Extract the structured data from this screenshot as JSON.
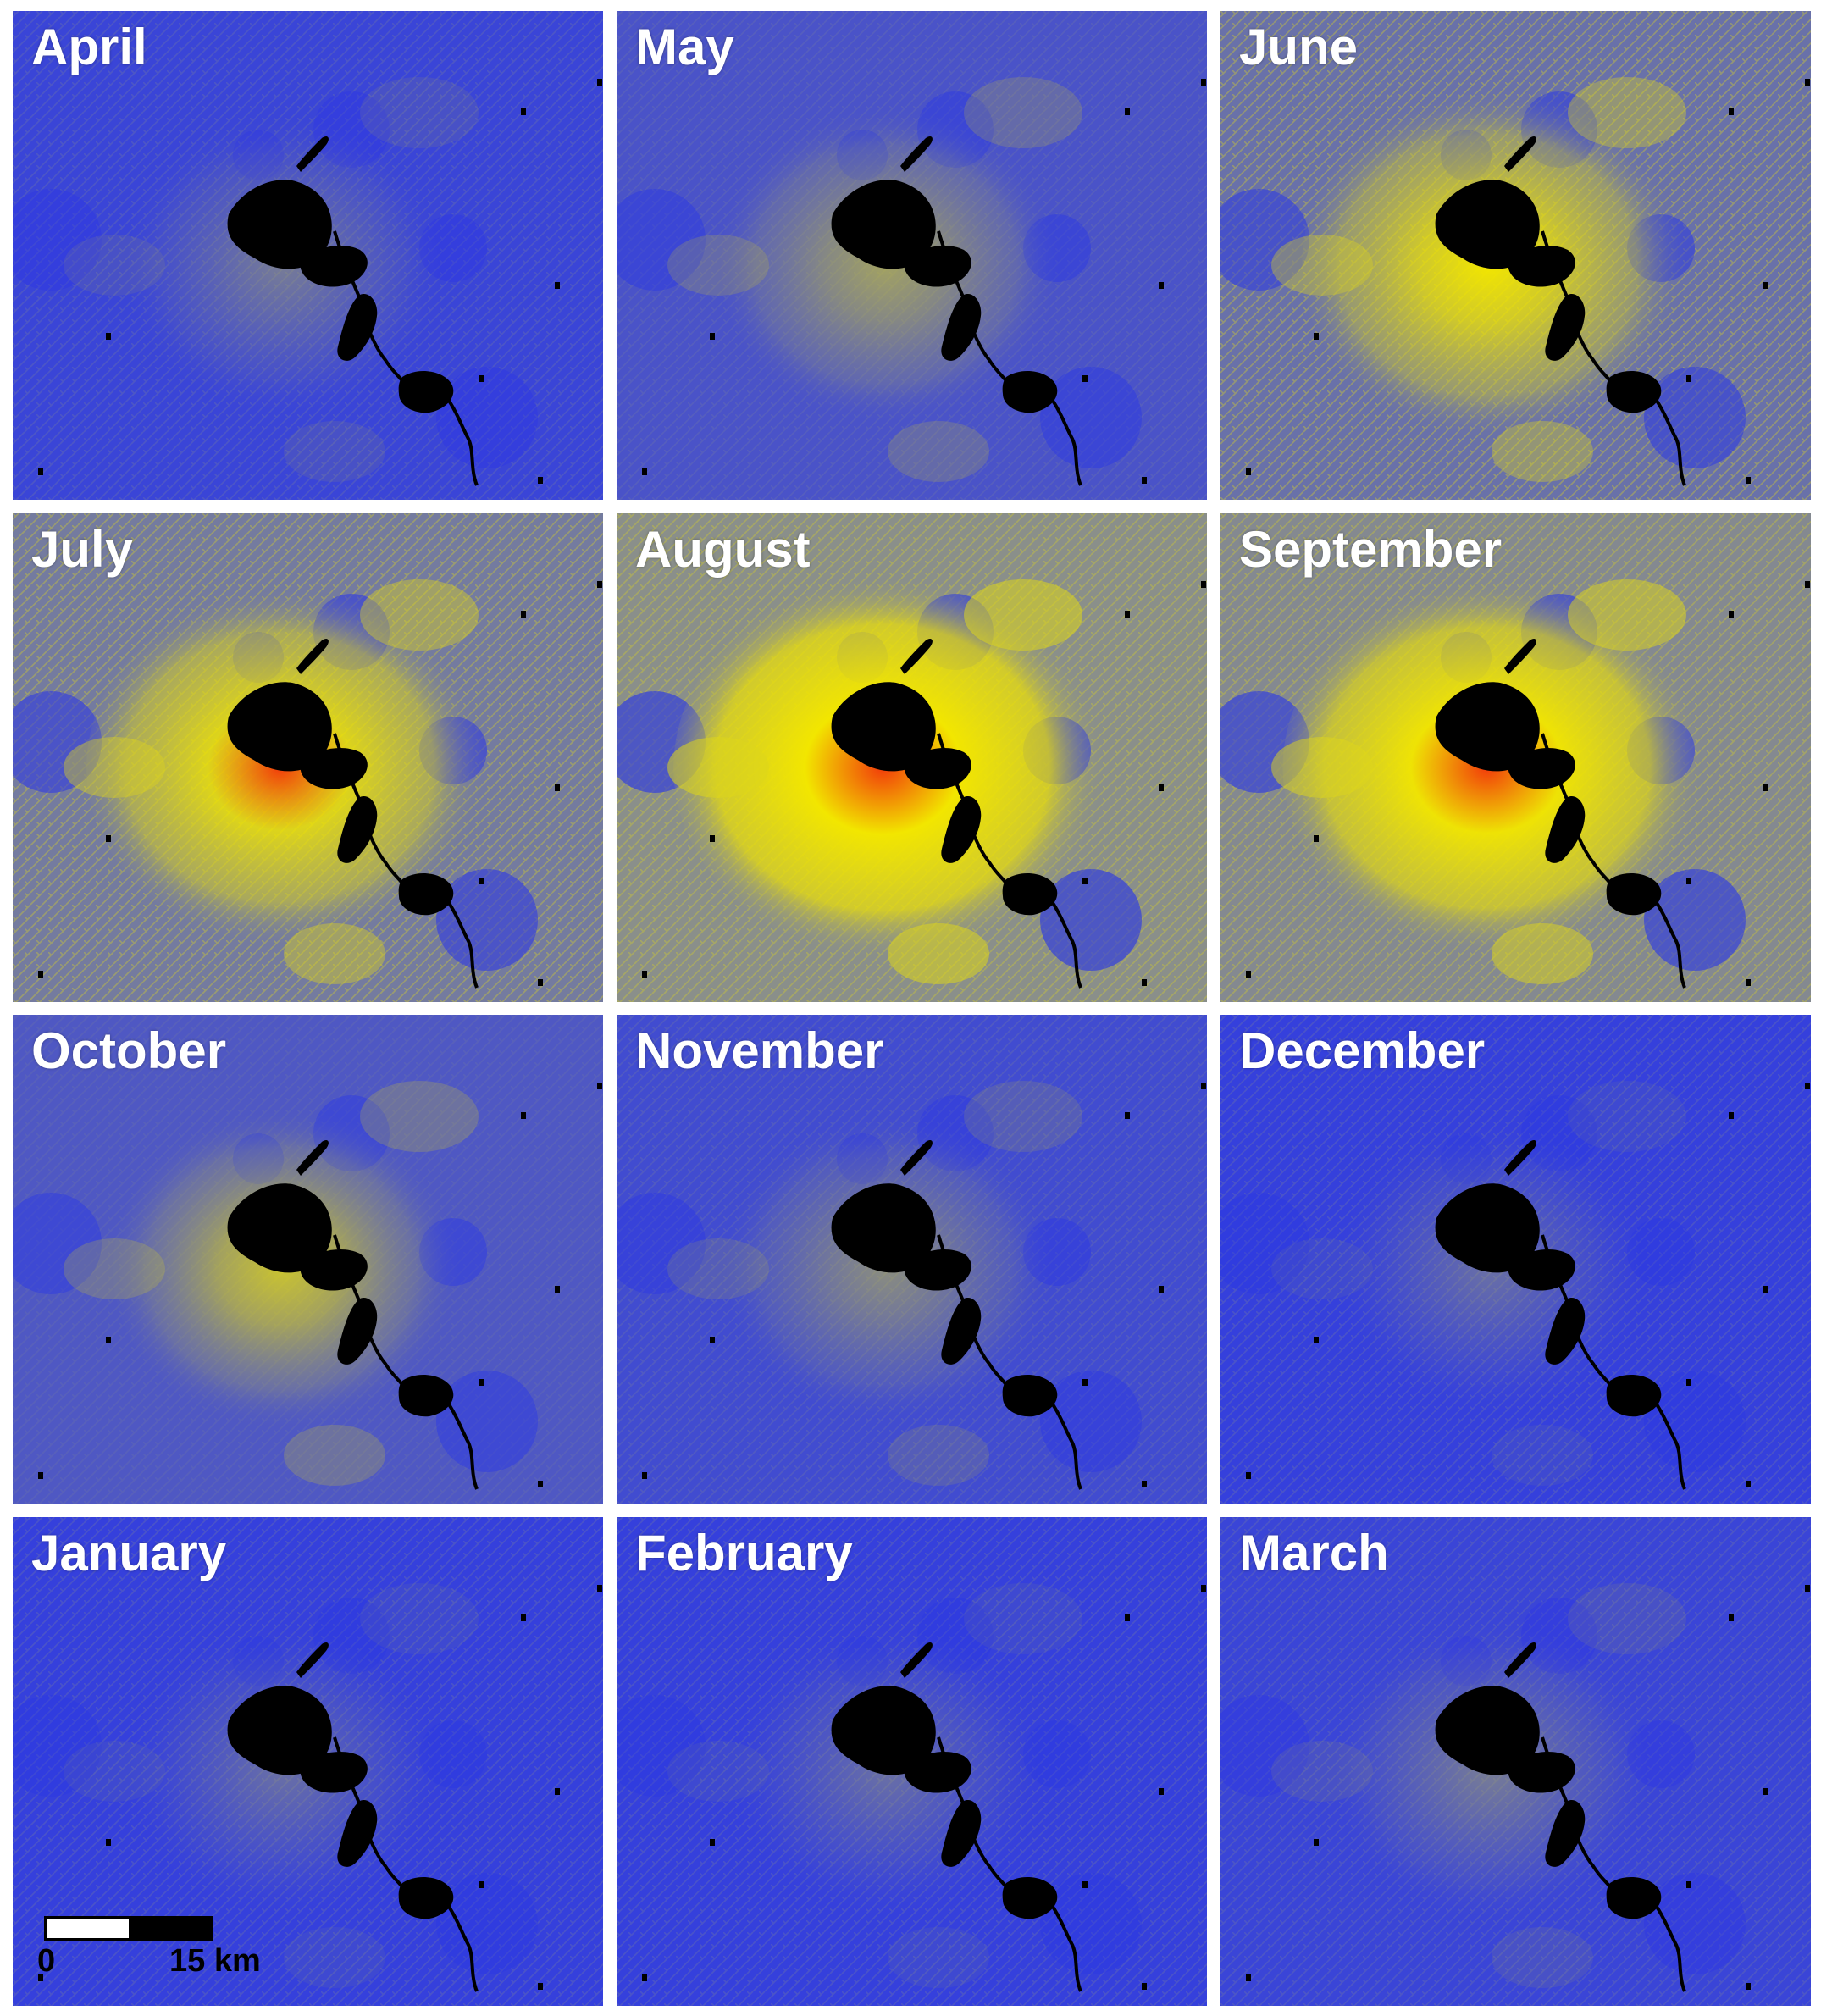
{
  "panels": [
    {
      "label": "April",
      "warmth": 0.15
    },
    {
      "label": "May",
      "warmth": 0.3
    },
    {
      "label": "June",
      "warmth": 0.6
    },
    {
      "label": "July",
      "warmth": 0.7
    },
    {
      "label": "August",
      "warmth": 0.92
    },
    {
      "label": "September",
      "warmth": 0.85
    },
    {
      "label": "October",
      "warmth": 0.35
    },
    {
      "label": "November",
      "warmth": 0.22
    },
    {
      "label": "December",
      "warmth": 0.1
    },
    {
      "label": "January",
      "warmth": 0.1
    },
    {
      "label": "February",
      "warmth": 0.1
    },
    {
      "label": "March",
      "warmth": 0.15
    }
  ],
  "colors": {
    "cool": "#2a36e6",
    "neutral": "#8a8f8a",
    "warm": "#f2e600",
    "hot": "#f23c0a",
    "water": "#000000"
  },
  "scalebar": {
    "start_label": "0",
    "end_label": "15 km"
  }
}
